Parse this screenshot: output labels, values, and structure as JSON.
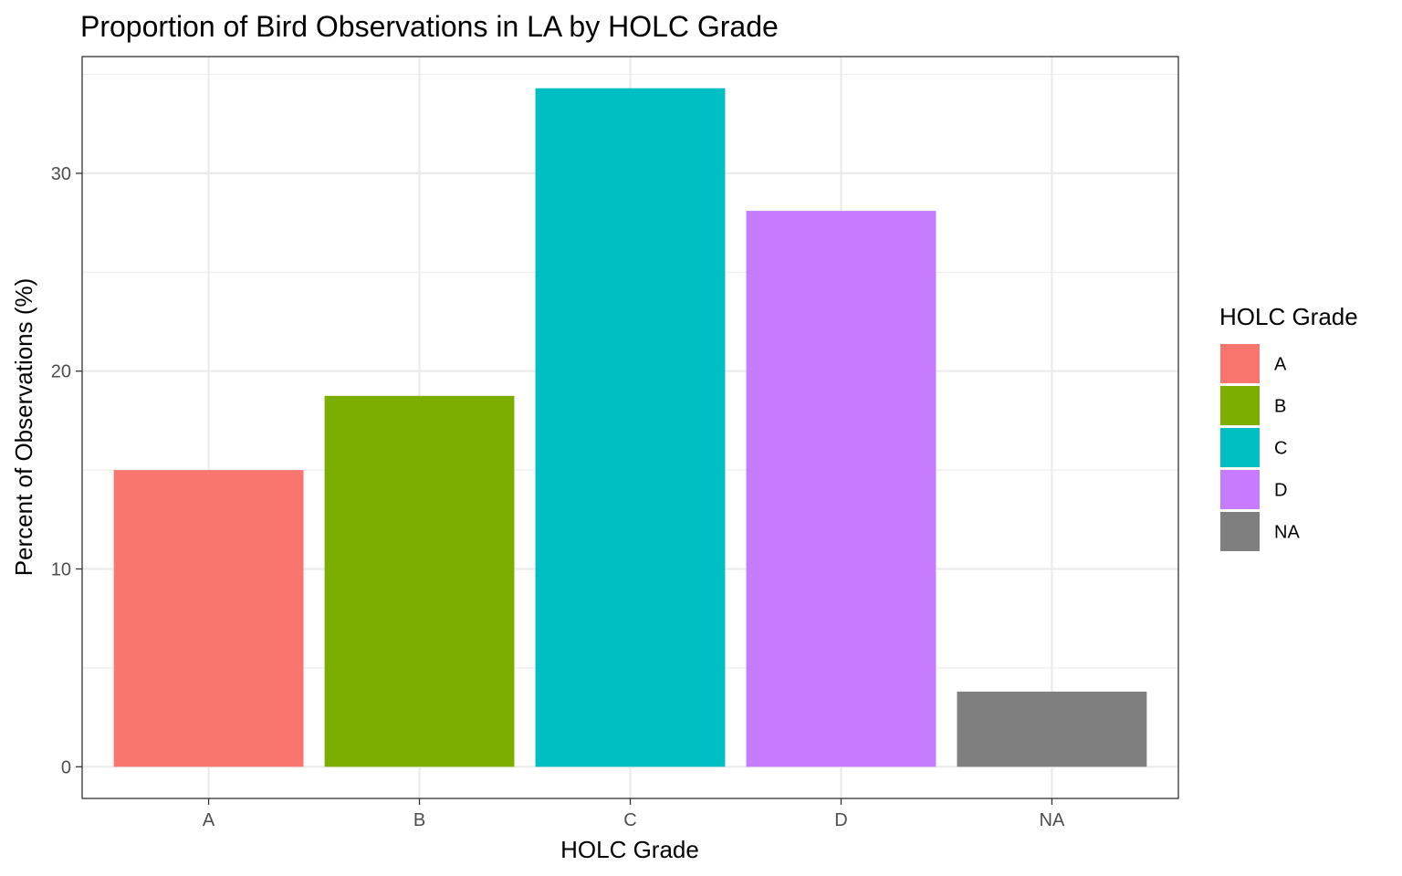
{
  "chart_data": {
    "type": "bar",
    "title": "Proportion of Bird Observations in LA by HOLC Grade",
    "xlabel": "HOLC Grade",
    "ylabel": "Percent of Observations (%)",
    "categories": [
      "A",
      "B",
      "C",
      "D",
      "NA"
    ],
    "values": [
      15.0,
      18.75,
      34.3,
      28.1,
      3.8
    ],
    "colors": [
      "#F8766D",
      "#7CAE00",
      "#00BFC4",
      "#C77CFF",
      "#7F7F7F"
    ],
    "ylim": [
      -1.6,
      35.9
    ],
    "yticks": [
      0,
      10,
      20,
      30
    ],
    "yticks_minor": [
      5,
      15,
      25,
      35
    ],
    "grid": true,
    "legend": {
      "title": "HOLC Grade",
      "position": "right",
      "items": [
        "A",
        "B",
        "C",
        "D",
        "NA"
      ]
    }
  }
}
